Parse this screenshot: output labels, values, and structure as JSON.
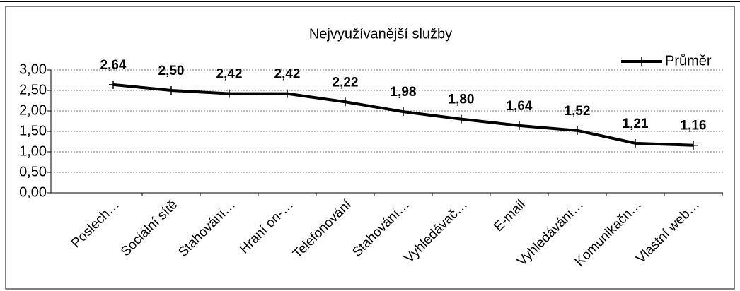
{
  "chart_data": {
    "type": "line",
    "title": "Nejvyužívanější  služby",
    "categories": [
      "Poslech…",
      "Sociální sítě",
      "Stahování…",
      "Hraní on-…",
      "Telefonování",
      "Stahování…",
      "Vyhledávač…",
      "E-mail",
      "Vyhledávání…",
      "Komunikačn…",
      "Vlastní web…"
    ],
    "series": [
      {
        "name": "Průměr",
        "color": "#000000",
        "values": [
          2.64,
          2.5,
          2.42,
          2.42,
          2.22,
          1.98,
          1.8,
          1.64,
          1.52,
          1.21,
          1.16
        ],
        "value_labels": [
          "2,64",
          "2,50",
          "2,42",
          "2,42",
          "2,22",
          "1,98",
          "1,80",
          "1,64",
          "1,52",
          "1,21",
          "1,16"
        ]
      }
    ],
    "ylim": [
      0,
      3
    ],
    "yticks": [
      {
        "value": 0,
        "label": "0,00"
      },
      {
        "value": 0.5,
        "label": "0,50"
      },
      {
        "value": 1,
        "label": "1,00"
      },
      {
        "value": 1.5,
        "label": "1,50"
      },
      {
        "value": 2,
        "label": "2,00"
      },
      {
        "value": 2.5,
        "label": "2,50"
      },
      {
        "value": 3,
        "label": "3,00"
      }
    ],
    "grid": true,
    "legend": "top-right"
  }
}
